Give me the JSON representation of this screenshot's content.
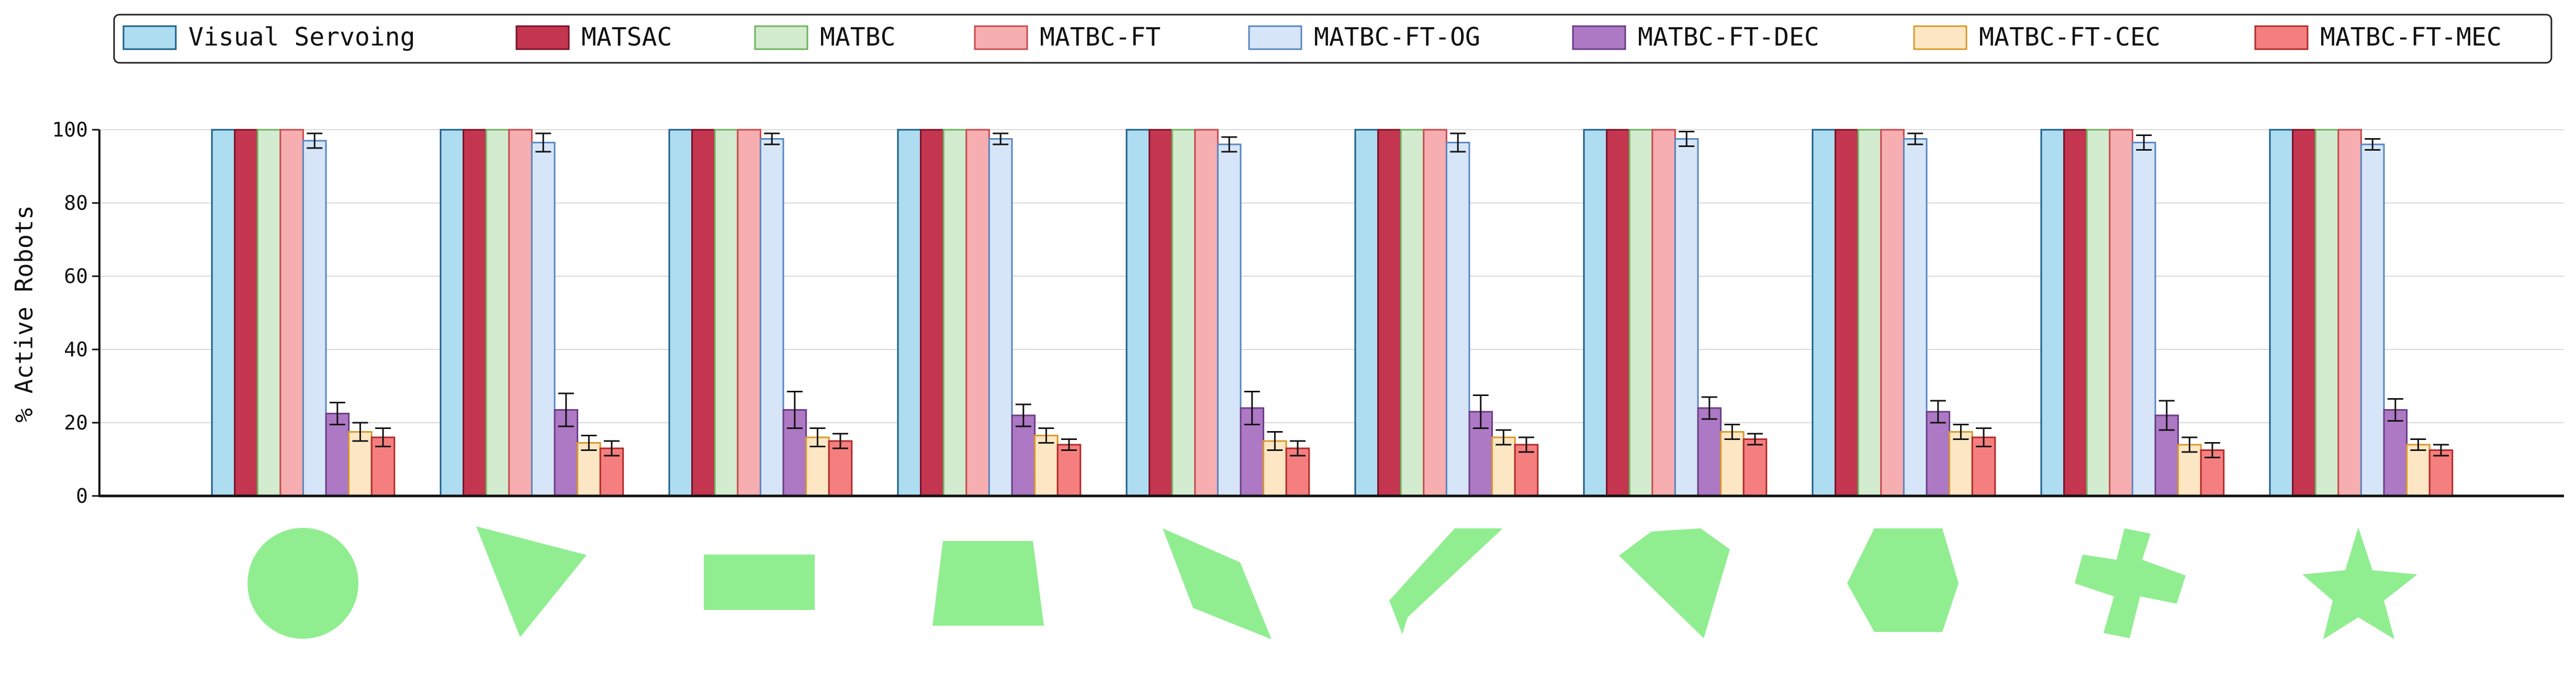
{
  "chart_data": {
    "type": "bar",
    "title": "",
    "xlabel": "",
    "ylabel": "% Active Robots",
    "ylim": [
      0,
      100
    ],
    "yticks": [
      "0",
      "20",
      "40",
      "60",
      "80",
      "100"
    ],
    "grid": true,
    "legend_position": "top",
    "categories": [
      "Circle",
      "Triangle",
      "Rectangle",
      "Trapezoid",
      "Kite",
      "Pentagon",
      "Irregular Heptagon",
      "Hexagon",
      "Cross",
      "Star"
    ],
    "series": [
      {
        "name": "Visual Servoing",
        "fill": "#aedcf0",
        "stroke": "#1a5f8a",
        "values": [
          100,
          100,
          100,
          100,
          100,
          100,
          100,
          100,
          100,
          100
        ],
        "errors": [
          0,
          0,
          0,
          0,
          0,
          0,
          0,
          0,
          0,
          0
        ]
      },
      {
        "name": "MATSAC",
        "fill": "#c4354f",
        "stroke": "#7a1228",
        "values": [
          100,
          100,
          100,
          100,
          100,
          100,
          100,
          100,
          100,
          100
        ],
        "errors": [
          0,
          0,
          0,
          0,
          0,
          0,
          0,
          0,
          0,
          0
        ]
      },
      {
        "name": "MATBC",
        "fill": "#d3ebcf",
        "stroke": "#6fb35f",
        "values": [
          100,
          100,
          100,
          100,
          100,
          100,
          100,
          100,
          100,
          100
        ],
        "errors": [
          0,
          0,
          0,
          0,
          0,
          0,
          0,
          0,
          0,
          0
        ]
      },
      {
        "name": "MATBC-FT",
        "fill": "#f6aeb0",
        "stroke": "#c84a50",
        "values": [
          100,
          100,
          100,
          100,
          100,
          100,
          100,
          100,
          100,
          100
        ],
        "errors": [
          0,
          0,
          0,
          0,
          0,
          0,
          0,
          0,
          0,
          0
        ]
      },
      {
        "name": "MATBC-FT-OG",
        "fill": "#d6e6f8",
        "stroke": "#5a86c0",
        "values": [
          97,
          96.5,
          97.5,
          97.5,
          96,
          96.5,
          97.5,
          97.5,
          96.5,
          96
        ],
        "errors": [
          2,
          2.5,
          1.5,
          1.5,
          2,
          2.5,
          2,
          1.5,
          2,
          1.5
        ]
      },
      {
        "name": "MATBC-FT-DEC",
        "fill": "#ad78c4",
        "stroke": "#6a3e86",
        "values": [
          22.5,
          23.5,
          23.5,
          22,
          24,
          23,
          24,
          23,
          22,
          23.5
        ],
        "errors": [
          3,
          4.5,
          5,
          3,
          4.5,
          4.5,
          3,
          3,
          4,
          3
        ]
      },
      {
        "name": "MATBC-FT-CEC",
        "fill": "#fce6c4",
        "stroke": "#d79a2a",
        "values": [
          17.5,
          14.5,
          16,
          16.5,
          15,
          16,
          17.5,
          17.5,
          14,
          14
        ],
        "errors": [
          2.5,
          2,
          2.5,
          2,
          2.5,
          2,
          2,
          2,
          2,
          1.5
        ]
      },
      {
        "name": "MATBC-FT-MEC",
        "fill": "#f57f7f",
        "stroke": "#b02a2a",
        "values": [
          16,
          13,
          15,
          14,
          13,
          14,
          15.5,
          16,
          12.5,
          12.5
        ],
        "errors": [
          2.5,
          2,
          2,
          1.5,
          2,
          2,
          1.5,
          2.5,
          2,
          1.5
        ]
      }
    ]
  }
}
